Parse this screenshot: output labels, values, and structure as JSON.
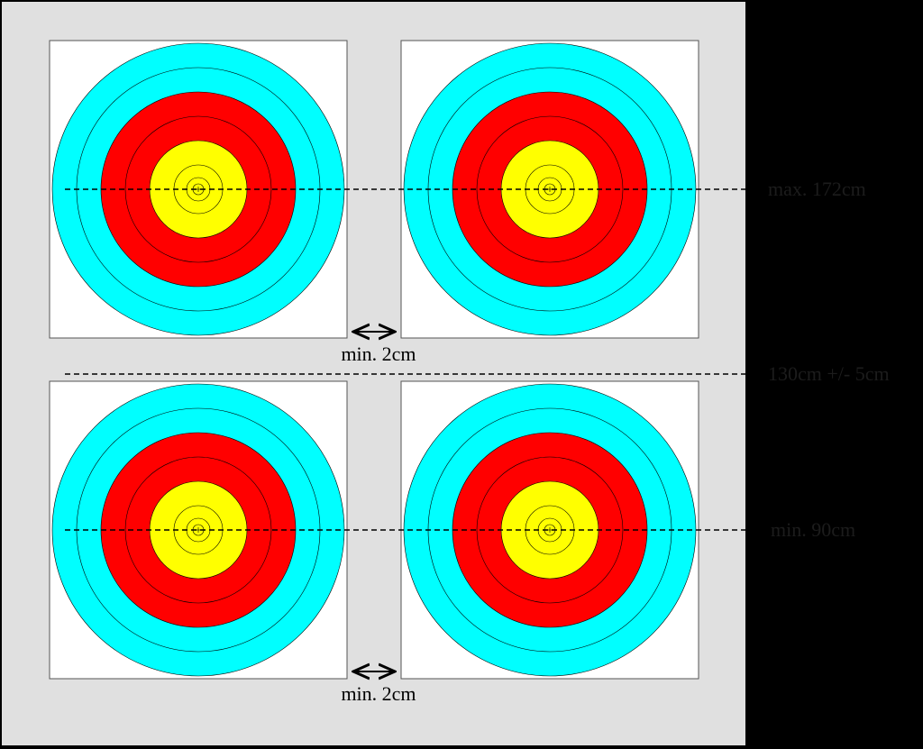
{
  "labels": {
    "top_line": "max. 172cm",
    "middle_line": "130cm +/- 5cm",
    "bottom_line": "min. 90cm",
    "gap_top": "min. 2cm",
    "gap_bottom": "min. 2cm"
  }
}
